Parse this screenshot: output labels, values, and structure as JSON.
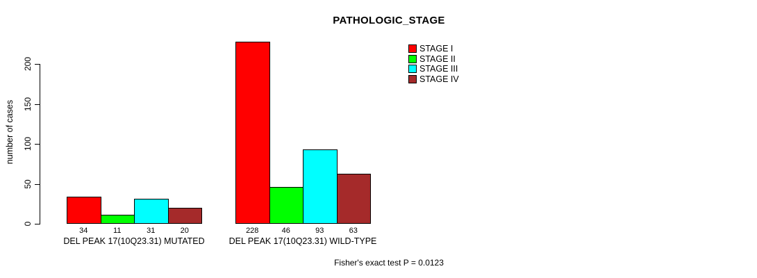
{
  "chart_data": {
    "type": "bar",
    "title": "PATHOLOGIC_STAGE",
    "ylabel": "number of cases",
    "xlabel": "",
    "categories": [
      "DEL PEAK 17(10Q23.31) MUTATED",
      "DEL PEAK 17(10Q23.31) WILD-TYPE"
    ],
    "series": [
      {
        "name": "STAGE I",
        "color": "#FF0000",
        "values": [
          34,
          228
        ]
      },
      {
        "name": "STAGE II",
        "color": "#00FF00",
        "values": [
          11,
          46
        ]
      },
      {
        "name": "STAGE III",
        "color": "#00FFFF",
        "values": [
          31,
          93
        ]
      },
      {
        "name": "STAGE IV",
        "color": "#A52A2A",
        "values": [
          20,
          63
        ]
      }
    ],
    "yticks": [
      0,
      50,
      100,
      150,
      200
    ],
    "ylim": [
      0,
      230
    ],
    "grid": false,
    "legend_position": "top-right-inside",
    "annotation": "Fisher's exact test P = 0.0123",
    "bar_border_color": "#000000"
  }
}
